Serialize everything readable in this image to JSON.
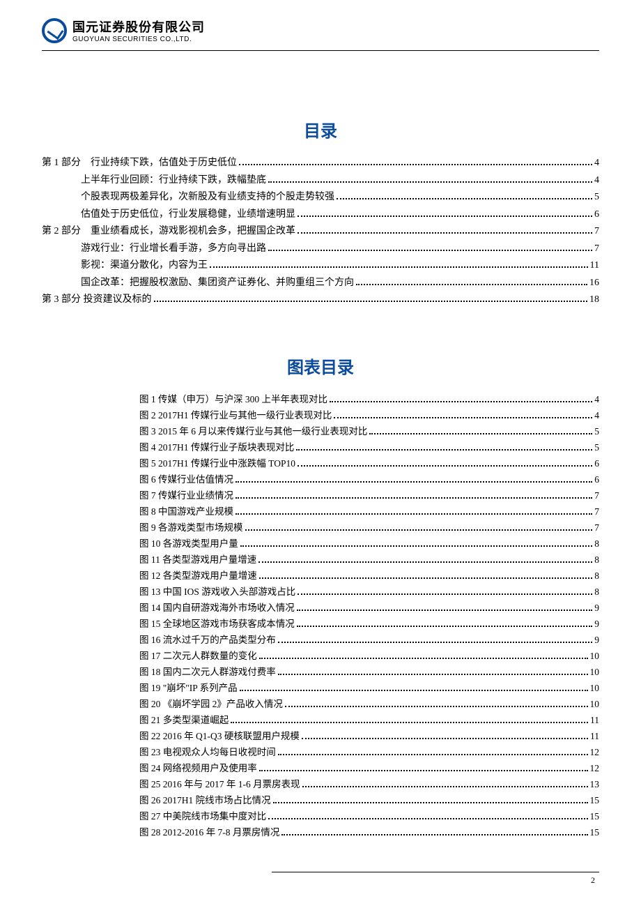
{
  "header": {
    "company_cn": "国元证券股份有限公司",
    "company_en": "GUOYUAN SECURITIES CO.,LTD."
  },
  "titles": {
    "toc": "目录",
    "figures": "图表目录"
  },
  "toc": [
    {
      "level": 0,
      "label": "第 1 部分　行业持续下跌，估值处于历史低位",
      "page": "4"
    },
    {
      "level": 1,
      "label": "上半年行业回顾：行业持续下跌，跌幅垫底",
      "page": "4"
    },
    {
      "level": 1,
      "label": "个股表现两极差异化，次新股及有业绩支持的个股走势较强",
      "page": "5"
    },
    {
      "level": 1,
      "label": "估值处于历史低位，行业发展稳健，业绩增速明显",
      "page": "6"
    },
    {
      "level": 0,
      "label": "第 2 部分　重业绩看成长，游戏影视机会多，把握国企改革",
      "page": "7"
    },
    {
      "level": 1,
      "label": "游戏行业：行业增长看手游，多方向寻出路",
      "page": "7"
    },
    {
      "level": 1,
      "label": "影视：渠道分散化，内容为王",
      "page": "11"
    },
    {
      "level": 1,
      "label": "国企改革：把握股权激励、集团资产证券化、并购重组三个方向",
      "page": "16"
    },
    {
      "level": 0,
      "label": "第 3 部分  投资建议及标的",
      "page": "18"
    }
  ],
  "figures": [
    {
      "label": "图  1 传媒（申万）与沪深 300 上半年表现对比",
      "page": "4"
    },
    {
      "label": "图  2 2017H1 传媒行业与其他一级行业表现对比",
      "page": "4"
    },
    {
      "label": "图  3 2015 年 6 月以来传媒行业与其他一级行业表现对比",
      "page": "5"
    },
    {
      "label": "图  4 2017H1 传媒行业子版块表现对比",
      "page": "5"
    },
    {
      "label": "图  5 2017H1 传媒行业中涨跌幅 TOP10",
      "page": "6"
    },
    {
      "label": "图  6  传媒行业估值情况",
      "page": "6"
    },
    {
      "label": "图  7  传媒行业业绩情况",
      "page": "7"
    },
    {
      "label": "图  8  中国游戏产业规模",
      "page": "7"
    },
    {
      "label": "图  9  各游戏类型市场规模",
      "page": "7"
    },
    {
      "label": "图  10  各游戏类型用户量",
      "page": "8"
    },
    {
      "label": "图  11  各类型游戏用户量增速",
      "page": "8"
    },
    {
      "label": "图  12  各类型游戏用户量增速",
      "page": "8"
    },
    {
      "label": "图  13  中国 IOS 游戏收入头部游戏占比",
      "page": "8"
    },
    {
      "label": "图  14  国内自研游戏海外市场收入情况",
      "page": "9"
    },
    {
      "label": "图  15  全球地区游戏市场获客成本情况",
      "page": "9"
    },
    {
      "label": "图  16  流水过千万的产品类型分布",
      "page": "9"
    },
    {
      "label": "图  17  二次元人群数量的变化",
      "page": "10"
    },
    {
      "label": "图  18  国内二次元人群游戏付费率",
      "page": "10"
    },
    {
      "label": "图  19  \"崩坏\"IP 系列产品",
      "page": "10"
    },
    {
      "label": "图  20  《崩坏学园 2》产品收入情况",
      "page": "10"
    },
    {
      "label": "图  21  多类型渠道崛起",
      "page": "11"
    },
    {
      "label": "图  22 2016 年 Q1-Q3 硬核联盟用户规模",
      "page": "11"
    },
    {
      "label": "图  23  电视观众人均每日收视时间",
      "page": "12"
    },
    {
      "label": "图  24  网络视频用户及使用率",
      "page": "12"
    },
    {
      "label": "图  25 2016 年与 2017 年 1-6 月票房表现",
      "page": "13"
    },
    {
      "label": "图  26 2017H1 院线市场占比情况",
      "page": "15"
    },
    {
      "label": "图  27  中美院线市场集中度对比",
      "page": "15"
    },
    {
      "label": "图  28 2012-2016 年 7-8 月票房情况",
      "page": "15"
    }
  ],
  "footer": {
    "page_number": "2"
  },
  "style": {
    "accent_color": "#0a4b9b",
    "body_font_size": 14,
    "title_font_size": 24
  }
}
